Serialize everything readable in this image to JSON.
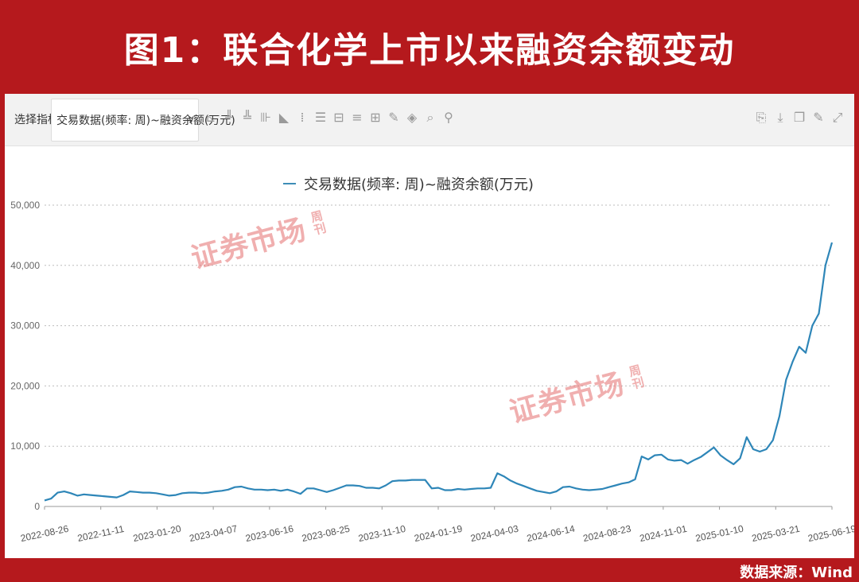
{
  "title": "图1：联合化学上市以来融资余额变动",
  "source": "数据来源：Wind",
  "toolbar": {
    "label": "选择指标",
    "select_value": "交易数据(频率: 周)~融资余额(万元)",
    "icons": [
      "line-chart-icon",
      "bar-chart-icon",
      "stacked-bar-icon",
      "column-icon",
      "area-chart-icon",
      "scatter-icon",
      "horizontal-bar-icon",
      "range-bar-icon",
      "list-icon",
      "table-icon",
      "edit-icon",
      "marker-icon",
      "search-icon",
      "link-icon"
    ],
    "right_icons": [
      "export-icon",
      "download-icon",
      "copy-icon",
      "edit-icon",
      "fullscreen-icon"
    ]
  },
  "watermark": {
    "text": "证券市场",
    "side": "周刊"
  },
  "colors": {
    "frame": "#b5191d",
    "line": "#2e86b8",
    "watermark": "#e46e6e"
  },
  "chart_data": {
    "type": "line",
    "legend": "交易数据(频率: 周)~融资余额(万元)",
    "xlabel": "",
    "ylabel": "",
    "ylim": [
      0,
      50000
    ],
    "yticks": [
      "0",
      "10,000",
      "20,000",
      "30,000",
      "40,000",
      "50,000"
    ],
    "xticks": [
      "2022-08-26",
      "2022-11-11",
      "2023-01-20",
      "2023-04-07",
      "2023-06-16",
      "2023-08-25",
      "2023-11-10",
      "2024-01-19",
      "2024-04-03",
      "2024-06-14",
      "2024-08-23",
      "2024-11-01",
      "2025-01-10",
      "2025-03-21",
      "2025-06-19"
    ],
    "grid": "horizontal-dotted",
    "legend_position": "top-center",
    "series": [
      {
        "name": "交易数据(频率: 周)~融资余额(万元)",
        "values": [
          1000,
          1300,
          2300,
          2500,
          2200,
          1800,
          2000,
          1900,
          1800,
          1700,
          1600,
          1500,
          1900,
          2500,
          2400,
          2300,
          2300,
          2200,
          2000,
          1800,
          1900,
          2200,
          2300,
          2300,
          2200,
          2300,
          2500,
          2600,
          2800,
          3200,
          3300,
          3000,
          2800,
          2800,
          2700,
          2800,
          2600,
          2800,
          2500,
          2100,
          3000,
          3000,
          2700,
          2400,
          2700,
          3100,
          3500,
          3500,
          3400,
          3100,
          3100,
          3000,
          3500,
          4200,
          4300,
          4300,
          4400,
          4400,
          4400,
          3000,
          3100,
          2700,
          2700,
          2900,
          2800,
          2900,
          3000,
          3000,
          3100,
          5500,
          5000,
          4300,
          3800,
          3400,
          3000,
          2600,
          2400,
          2200,
          2500,
          3200,
          3300,
          3000,
          2800,
          2700,
          2800,
          2900,
          3200,
          3500,
          3800,
          4000,
          4500,
          8300,
          7800,
          8500,
          8600,
          7800,
          7600,
          7700,
          7100,
          7700,
          8200,
          9000,
          9800,
          8500,
          7700,
          7000,
          8000,
          11500,
          9500,
          9100,
          9500,
          11000,
          15000,
          21000,
          24000,
          26500,
          25500,
          30000,
          32000,
          40000,
          43800
        ]
      }
    ]
  }
}
